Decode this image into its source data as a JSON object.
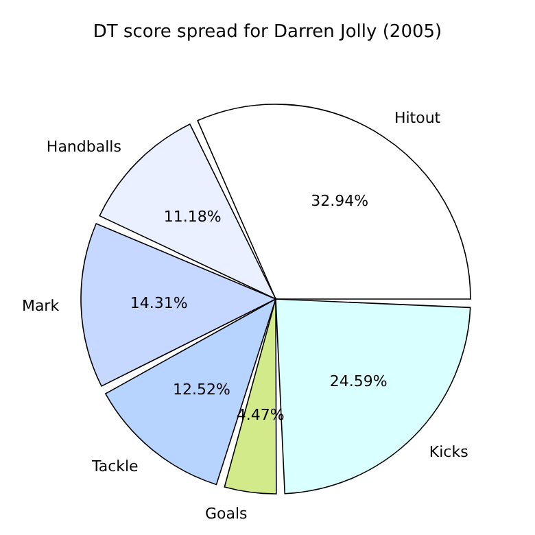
{
  "chart_data": {
    "type": "pie",
    "title": "DT score spread for Darren Jolly (2005)",
    "categories": [
      "Hitout",
      "Handballs",
      "Mark",
      "Tackle",
      "Goals",
      "Kicks"
    ],
    "values": [
      32.94,
      11.18,
      14.31,
      12.52,
      4.47,
      24.59
    ],
    "value_labels": [
      "32.94%",
      "11.18%",
      "14.31%",
      "12.52%",
      "4.47%",
      "24.59%"
    ],
    "colors": [
      "#ffffff",
      "#eaf0ff",
      "#c6d8ff",
      "#b6d4ff",
      "#d2ea8a",
      "#d9ffff"
    ]
  }
}
